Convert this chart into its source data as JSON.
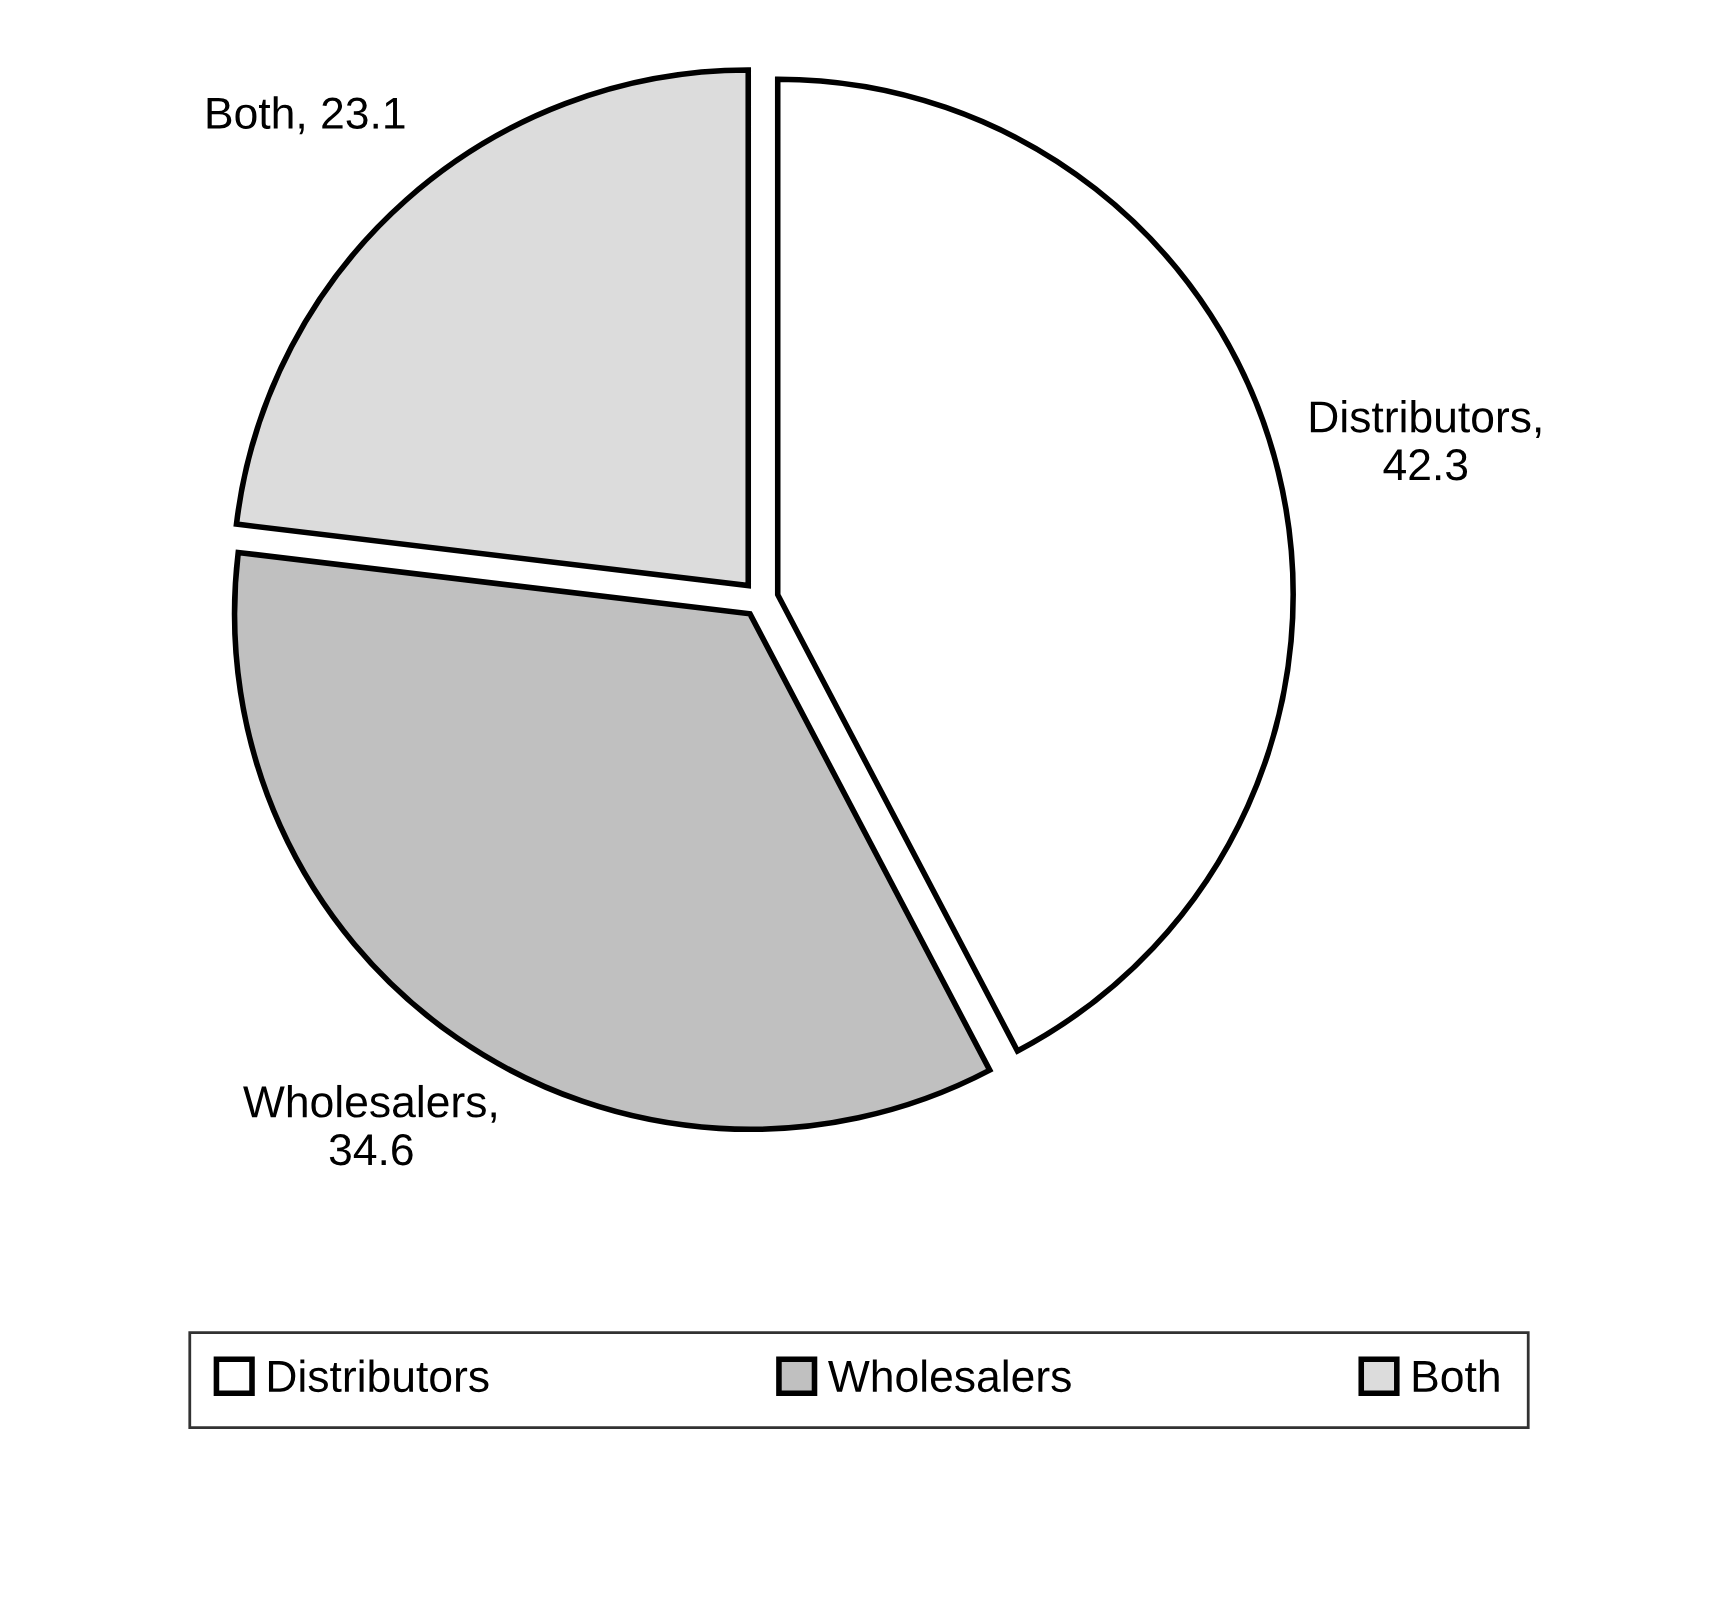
{
  "chart_data": {
    "type": "pie",
    "categories": [
      "Distributors",
      "Wholesalers",
      "Both"
    ],
    "values": [
      42.3,
      34.6,
      23.1
    ],
    "colors": [
      "#ffffff",
      "#c0c0c0",
      "#dcdcdc"
    ],
    "value_labels": [
      "Distributors,\n42.3",
      "Wholesalers,\n34.6",
      "Both, 23.1"
    ],
    "legend": "bottom"
  }
}
